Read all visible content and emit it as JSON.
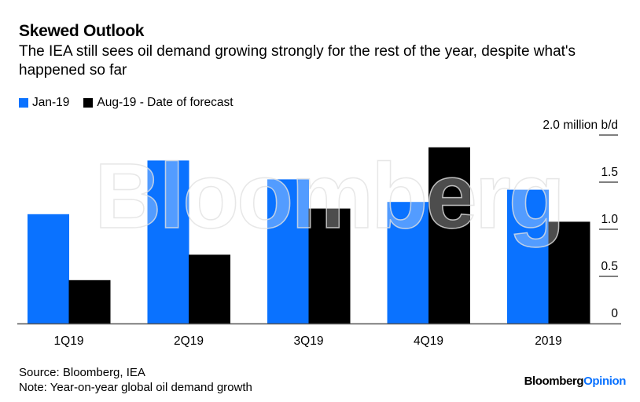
{
  "title": "Skewed Outlook",
  "subtitle": "The IEA still sees oil demand growing strongly for the rest of the year, despite what's happened so far",
  "source": "Source: Bloomberg, IEA",
  "note": "Note: Year-on-year global oil demand growth",
  "watermark": "Bloomberg",
  "logo": {
    "part1": "Bloomberg",
    "part2": "Opinion"
  },
  "colors": {
    "jan": "#0a72ff",
    "aug": "#000000",
    "logo_accent": "#0a72ff"
  },
  "chart_data": {
    "type": "bar",
    "categories": [
      "1Q19",
      "2Q19",
      "3Q19",
      "4Q19",
      "2019"
    ],
    "series": [
      {
        "name": "Jan-19",
        "values": [
          1.16,
          1.73,
          1.53,
          1.29,
          1.42
        ]
      },
      {
        "name": "Aug-19 - Date of forecast",
        "values": [
          0.46,
          0.73,
          1.22,
          1.87,
          1.08
        ]
      }
    ],
    "ylabel": "million b/d",
    "ylim": [
      0,
      2.0
    ],
    "yticks": [
      "0",
      "0.5",
      "1.0",
      "1.5",
      "2.0 million b/d"
    ],
    "ytick_values": [
      0,
      0.5,
      1.0,
      1.5,
      2.0
    ],
    "yaxis_position": "right",
    "grid": false,
    "legend": "top-left"
  }
}
